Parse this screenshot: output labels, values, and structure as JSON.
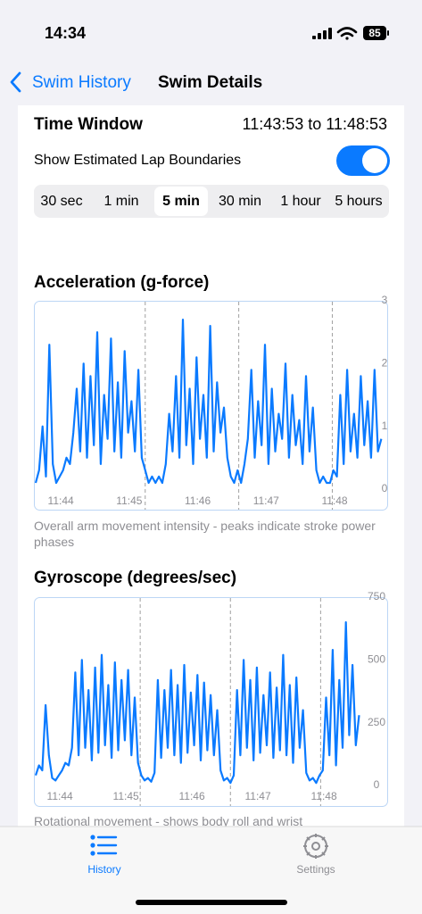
{
  "status_bar": {
    "time": "14:34",
    "battery": "85"
  },
  "nav": {
    "back": "Swim History",
    "title": "Swim Details"
  },
  "time_window": {
    "label": "Time Window",
    "range": "11:43:53 to 11:48:53"
  },
  "lap_toggle": {
    "label": "Show Estimated Lap Boundaries",
    "on": true
  },
  "segments": {
    "options": [
      "30 sec",
      "1 min",
      "5 min",
      "30 min",
      "1 hour",
      "5 hours"
    ],
    "selected": 2
  },
  "chart_data": [
    {
      "type": "line",
      "title": "Acceleration (g-force)",
      "caption": "Overall arm movement intensity - peaks indicate stroke power phases",
      "color": "#0a7aff",
      "x": [
        -22,
        -19,
        -16,
        -13,
        -10,
        -7,
        -4,
        -1,
        2,
        5,
        8,
        11,
        14,
        17,
        20,
        23,
        26,
        29,
        32,
        35,
        38,
        41,
        44,
        47,
        50,
        53,
        56,
        59,
        62,
        65,
        68,
        71,
        74,
        77,
        80,
        83,
        86,
        89,
        92,
        95,
        98,
        101,
        104,
        107,
        110,
        113,
        116,
        119,
        122,
        125,
        128,
        131,
        134,
        137,
        140,
        143,
        146,
        149,
        152,
        155,
        158,
        161,
        164,
        167,
        170,
        173,
        176,
        179,
        182,
        185,
        188,
        191,
        194,
        197,
        200,
        203,
        206,
        209,
        212,
        215,
        218,
        221,
        224,
        227,
        230,
        233,
        236,
        239,
        242,
        245,
        248,
        251,
        254,
        257,
        260,
        263,
        266,
        269,
        272,
        275,
        278,
        281
      ],
      "values": [
        0.1,
        0.3,
        1.0,
        0.2,
        2.3,
        0.4,
        0.1,
        0.2,
        0.3,
        0.5,
        0.4,
        0.9,
        1.6,
        0.6,
        2.0,
        0.5,
        1.8,
        0.7,
        2.5,
        0.4,
        1.5,
        0.8,
        2.4,
        0.6,
        1.7,
        0.5,
        2.2,
        0.9,
        1.4,
        0.6,
        1.9,
        0.5,
        0.3,
        0.1,
        0.2,
        0.1,
        0.2,
        0.1,
        0.4,
        1.2,
        0.6,
        1.8,
        0.5,
        2.7,
        0.7,
        1.6,
        0.4,
        2.1,
        0.8,
        1.5,
        0.5,
        2.6,
        0.6,
        1.7,
        0.9,
        1.3,
        0.5,
        0.2,
        0.1,
        0.3,
        0.1,
        0.4,
        0.8,
        1.9,
        0.5,
        1.4,
        0.7,
        2.3,
        0.4,
        1.6,
        0.6,
        1.2,
        0.8,
        2.0,
        0.5,
        1.5,
        0.7,
        1.1,
        0.4,
        1.8,
        0.6,
        1.3,
        0.3,
        0.1,
        0.2,
        0.1,
        0.1,
        0.3,
        0.2,
        1.5,
        0.4,
        1.9,
        0.6,
        1.2,
        0.5,
        1.8,
        0.7,
        1.4,
        0.5,
        1.9,
        0.6,
        0.8
      ],
      "xlim": [
        -22,
        283
      ],
      "xticks": [
        {
          "value": 0,
          "label": "11:44"
        },
        {
          "value": 60,
          "label": "11:45"
        },
        {
          "value": 120,
          "label": "11:46"
        },
        {
          "value": 180,
          "label": "11:47"
        },
        {
          "value": 240,
          "label": "11:48"
        }
      ],
      "ylim": [
        0,
        3
      ],
      "yticks": [
        0,
        1,
        2,
        3
      ],
      "lap_boundaries": [
        74,
        156,
        238
      ]
    },
    {
      "type": "line",
      "title": "Gyroscope (degrees/sec)",
      "caption": "Rotational movement - shows body roll and wrist",
      "color": "#0a7aff",
      "x": [
        -22,
        -19,
        -16,
        -13,
        -10,
        -7,
        -4,
        -1,
        2,
        5,
        8,
        11,
        14,
        17,
        20,
        23,
        26,
        29,
        32,
        35,
        38,
        41,
        44,
        47,
        50,
        53,
        56,
        59,
        62,
        65,
        68,
        71,
        74,
        77,
        80,
        83,
        86,
        89,
        92,
        95,
        98,
        101,
        104,
        107,
        110,
        113,
        116,
        119,
        122,
        125,
        128,
        131,
        134,
        137,
        140,
        143,
        146,
        149,
        152,
        155,
        158,
        161,
        164,
        167,
        170,
        173,
        176,
        179,
        182,
        185,
        188,
        191,
        194,
        197,
        200,
        203,
        206,
        209,
        212,
        215,
        218,
        221,
        224,
        227,
        230,
        233,
        236,
        239,
        242,
        245,
        248,
        251,
        254,
        257,
        260,
        263,
        266,
        269,
        272
      ],
      "values": [
        40,
        80,
        60,
        320,
        120,
        30,
        20,
        40,
        60,
        90,
        80,
        150,
        450,
        120,
        500,
        150,
        380,
        100,
        470,
        130,
        520,
        160,
        400,
        110,
        490,
        140,
        420,
        180,
        460,
        120,
        350,
        90,
        40,
        20,
        30,
        15,
        50,
        420,
        110,
        380,
        150,
        460,
        120,
        400,
        90,
        480,
        130,
        370,
        160,
        440,
        100,
        410,
        140,
        360,
        120,
        300,
        60,
        20,
        30,
        10,
        40,
        380,
        120,
        500,
        150,
        420,
        100,
        470,
        130,
        360,
        160,
        450,
        110,
        390,
        140,
        520,
        120,
        400,
        90,
        430,
        150,
        300,
        50,
        20,
        30,
        10,
        40,
        60,
        350,
        120,
        540,
        80,
        420,
        150,
        650,
        200,
        480,
        160,
        280
      ],
      "xlim": [
        -22,
        274
      ],
      "xticks": [
        {
          "value": 0,
          "label": "11:44"
        },
        {
          "value": 60,
          "label": "11:45"
        },
        {
          "value": 120,
          "label": "11:46"
        },
        {
          "value": 180,
          "label": "11:47"
        },
        {
          "value": 240,
          "label": "11:48"
        }
      ],
      "ylim": [
        0,
        750
      ],
      "yticks": [
        0,
        250,
        500,
        750
      ],
      "lap_boundaries": [
        73,
        155,
        237
      ]
    }
  ],
  "tabs": [
    {
      "label": "History",
      "selected": true
    },
    {
      "label": "Settings",
      "selected": false
    }
  ]
}
